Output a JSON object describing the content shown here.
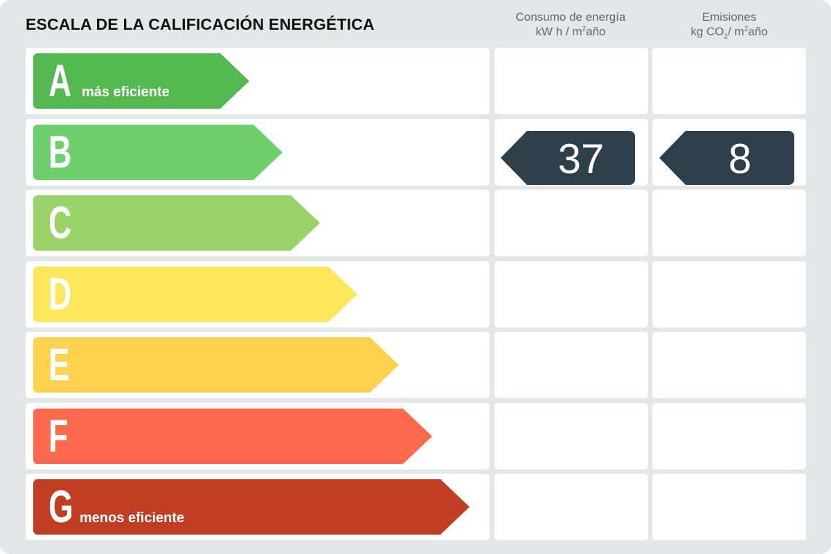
{
  "title": "ESCALA DE LA CALIFICACIÓN ENERGÉTICA",
  "columns": {
    "energy": {
      "line1": "Consumo de energía",
      "line2_prefix": "kW h / m",
      "line2_sup": "2",
      "line2_suffix": "año"
    },
    "emissions": {
      "line1": "Emisiones",
      "line2_prefix": "kg CO",
      "line2_sub": "2",
      "line2_mid": "/ m",
      "line2_sup": "2",
      "line2_suffix": "año"
    }
  },
  "ratings": [
    {
      "letter": "A",
      "note": "más eficiente",
      "color": "#52b84f"
    },
    {
      "letter": "B",
      "note": "",
      "color": "#6dd06d"
    },
    {
      "letter": "C",
      "note": "",
      "color": "#9ad36a"
    },
    {
      "letter": "D",
      "note": "",
      "color": "#fde55c"
    },
    {
      "letter": "E",
      "note": "",
      "color": "#fed14e"
    },
    {
      "letter": "F",
      "note": "",
      "color": "#fe6a4d"
    },
    {
      "letter": "G",
      "note": "menos eficiente",
      "color": "#c03e24"
    }
  ],
  "result": {
    "rating": "B",
    "energy_value": "37",
    "emissions_value": "8",
    "tag_color": "#2d3f48"
  }
}
